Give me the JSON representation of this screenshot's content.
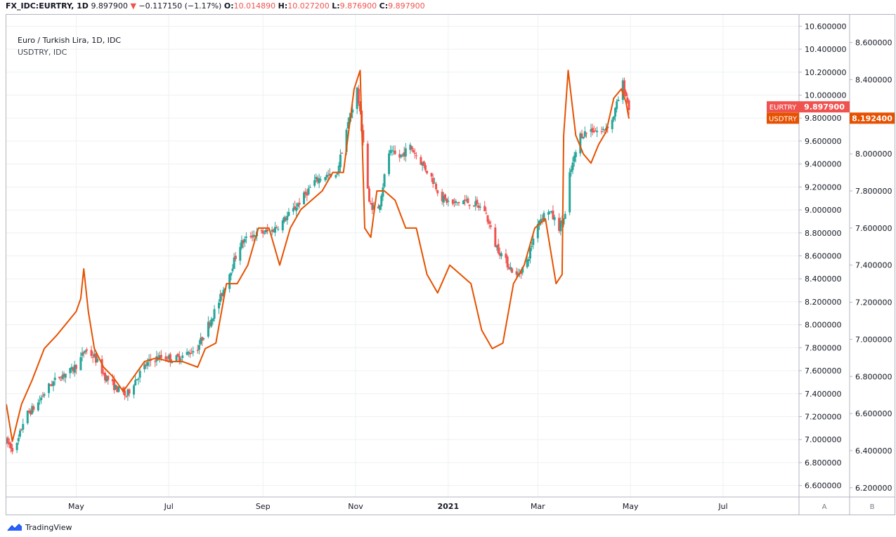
{
  "header": {
    "symbol": "FX_IDC:EURTRY, 1D",
    "price": "9.897900",
    "change_arrow": "▼",
    "change": "−0.117150 (−1.17%)",
    "o_label": "O:",
    "o": "10.014890",
    "h_label": "H:",
    "h": "10.027200",
    "l_label": "L:",
    "l": "9.876900",
    "c_label": "C:",
    "c": "9.897900"
  },
  "legend": {
    "main": "Euro / Turkish Lira, 1D, IDC",
    "compare": "USDTRY, IDC"
  },
  "footer": {
    "brand": "TradingView"
  },
  "colors": {
    "up": "#26a69a",
    "down": "#ef5350",
    "compare_line": "#e65100",
    "eurtry_tag": "#ef5350",
    "usdtry_tag": "#e65100",
    "grid": "#eef0f3"
  },
  "chart_data": [
    {
      "type": "candlestick",
      "series_name": "EURTRY",
      "last_value_label": "9.897900",
      "axis_scale": "A",
      "y_range": [
        6.5,
        10.7
      ],
      "y_ticks": [
        "6.600000",
        "6.800000",
        "7.000000",
        "7.200000",
        "7.400000",
        "7.600000",
        "7.800000",
        "8.000000",
        "8.200000",
        "8.400000",
        "8.600000",
        "8.800000",
        "9.000000",
        "9.200000",
        "9.400000",
        "9.600000",
        "9.800000",
        "10.000000",
        "10.200000",
        "10.400000",
        "10.600000"
      ],
      "x_labels": [
        "May",
        "Jul",
        "Sep",
        "Nov",
        "2021",
        "Mar",
        "May",
        "Jul"
      ],
      "x_range": [
        "2020-03-16",
        "2021-08-20"
      ],
      "anchors": [
        [
          "2020-03-16",
          6.98
        ],
        [
          "2020-03-22",
          6.9
        ],
        [
          "2020-03-28",
          7.2
        ],
        [
          "2020-04-05",
          7.3
        ],
        [
          "2020-04-12",
          7.45
        ],
        [
          "2020-04-20",
          7.55
        ],
        [
          "2020-04-28",
          7.6
        ],
        [
          "2020-05-03",
          7.68
        ],
        [
          "2020-05-07",
          7.78
        ],
        [
          "2020-05-13",
          7.72
        ],
        [
          "2020-05-20",
          7.55
        ],
        [
          "2020-05-27",
          7.45
        ],
        [
          "2020-06-03",
          7.38
        ],
        [
          "2020-06-08",
          7.5
        ],
        [
          "2020-06-14",
          7.62
        ],
        [
          "2020-06-20",
          7.7
        ],
        [
          "2020-06-27",
          7.72
        ],
        [
          "2020-07-05",
          7.7
        ],
        [
          "2020-07-12",
          7.74
        ],
        [
          "2020-07-20",
          7.8
        ],
        [
          "2020-07-27",
          8.0
        ],
        [
          "2020-08-03",
          8.2
        ],
        [
          "2020-08-10",
          8.45
        ],
        [
          "2020-08-17",
          8.7
        ],
        [
          "2020-08-24",
          8.78
        ],
        [
          "2020-08-31",
          8.8
        ],
        [
          "2020-09-07",
          8.82
        ],
        [
          "2020-09-14",
          8.9
        ],
        [
          "2020-09-21",
          9.0
        ],
        [
          "2020-09-28",
          9.12
        ],
        [
          "2020-10-05",
          9.25
        ],
        [
          "2020-10-12",
          9.3
        ],
        [
          "2020-10-19",
          9.28
        ],
        [
          "2020-10-26",
          9.7
        ],
        [
          "2020-11-02",
          10.05
        ],
        [
          "2020-11-06",
          9.6
        ],
        [
          "2020-11-10",
          9.05
        ],
        [
          "2020-11-16",
          9.0
        ],
        [
          "2020-11-23",
          9.5
        ],
        [
          "2020-11-30",
          9.46
        ],
        [
          "2020-12-07",
          9.55
        ],
        [
          "2020-12-14",
          9.42
        ],
        [
          "2020-12-21",
          9.28
        ],
        [
          "2020-12-28",
          9.1
        ],
        [
          "2021-01-04",
          9.05
        ],
        [
          "2021-01-11",
          9.08
        ],
        [
          "2021-01-18",
          9.05
        ],
        [
          "2021-01-25",
          9.0
        ],
        [
          "2021-02-01",
          8.7
        ],
        [
          "2021-02-08",
          8.55
        ],
        [
          "2021-02-15",
          8.42
        ],
        [
          "2021-02-22",
          8.55
        ],
        [
          "2021-03-01",
          8.9
        ],
        [
          "2021-03-08",
          9.0
        ],
        [
          "2021-03-15",
          8.85
        ],
        [
          "2021-03-19",
          8.95
        ],
        [
          "2021-03-22",
          9.3
        ],
        [
          "2021-03-29",
          9.65
        ],
        [
          "2021-04-05",
          9.7
        ],
        [
          "2021-04-12",
          9.68
        ],
        [
          "2021-04-19",
          9.78
        ],
        [
          "2021-04-26",
          10.1
        ],
        [
          "2021-04-30",
          9.89
        ]
      ]
    },
    {
      "type": "line",
      "series_name": "USDTRY",
      "last_value_label": "8.192400",
      "axis_scale": "B",
      "y_range": [
        6.15,
        8.75
      ],
      "y_ticks": [
        "6.200000",
        "6.400000",
        "6.600000",
        "6.800000",
        "7.000000",
        "7.200000",
        "7.400000",
        "7.600000",
        "7.800000",
        "8.000000",
        "8.200000",
        "8.400000",
        "8.600000"
      ],
      "x": [
        "2020-03-16",
        "2020-03-20",
        "2020-03-26",
        "2020-04-02",
        "2020-04-10",
        "2020-04-18",
        "2020-04-26",
        "2020-05-01",
        "2020-05-04",
        "2020-05-06",
        "2020-05-09",
        "2020-05-13",
        "2020-05-19",
        "2020-05-25",
        "2020-06-01",
        "2020-06-08",
        "2020-06-15",
        "2020-06-23",
        "2020-07-01",
        "2020-07-10",
        "2020-07-20",
        "2020-07-25",
        "2020-08-01",
        "2020-08-08",
        "2020-08-15",
        "2020-08-22",
        "2020-08-29",
        "2020-09-05",
        "2020-09-12",
        "2020-09-19",
        "2020-09-26",
        "2020-10-03",
        "2020-10-10",
        "2020-10-17",
        "2020-10-24",
        "2020-10-31",
        "2020-11-04",
        "2020-11-07",
        "2020-11-11",
        "2020-11-15",
        "2020-11-20",
        "2020-11-27",
        "2020-12-04",
        "2020-12-11",
        "2020-12-18",
        "2020-12-25",
        "2021-01-02",
        "2021-01-09",
        "2021-01-16",
        "2021-01-23",
        "2021-01-30",
        "2021-02-06",
        "2021-02-13",
        "2021-02-20",
        "2021-02-27",
        "2021-03-06",
        "2021-03-13",
        "2021-03-17",
        "2021-03-18",
        "2021-03-21",
        "2021-03-26",
        "2021-03-31",
        "2021-04-05",
        "2021-04-10",
        "2021-04-15",
        "2021-04-20",
        "2021-04-25",
        "2021-04-28",
        "2021-04-30"
      ],
      "y": [
        6.65,
        6.45,
        6.65,
        6.78,
        6.95,
        7.02,
        7.1,
        7.15,
        7.22,
        7.38,
        7.15,
        6.95,
        6.85,
        6.8,
        6.72,
        6.8,
        6.88,
        6.9,
        6.88,
        6.88,
        6.85,
        6.95,
        6.98,
        7.3,
        7.3,
        7.4,
        7.6,
        7.6,
        7.4,
        7.6,
        7.7,
        7.75,
        7.8,
        7.9,
        7.9,
        8.35,
        8.45,
        7.6,
        7.55,
        7.8,
        7.8,
        7.75,
        7.6,
        7.6,
        7.35,
        7.25,
        7.4,
        7.35,
        7.3,
        7.05,
        6.95,
        6.98,
        7.3,
        7.4,
        7.6,
        7.65,
        7.3,
        7.35,
        8.1,
        8.45,
        8.1,
        8.0,
        7.95,
        8.05,
        8.12,
        8.3,
        8.35,
        8.28,
        8.19
      ]
    }
  ]
}
